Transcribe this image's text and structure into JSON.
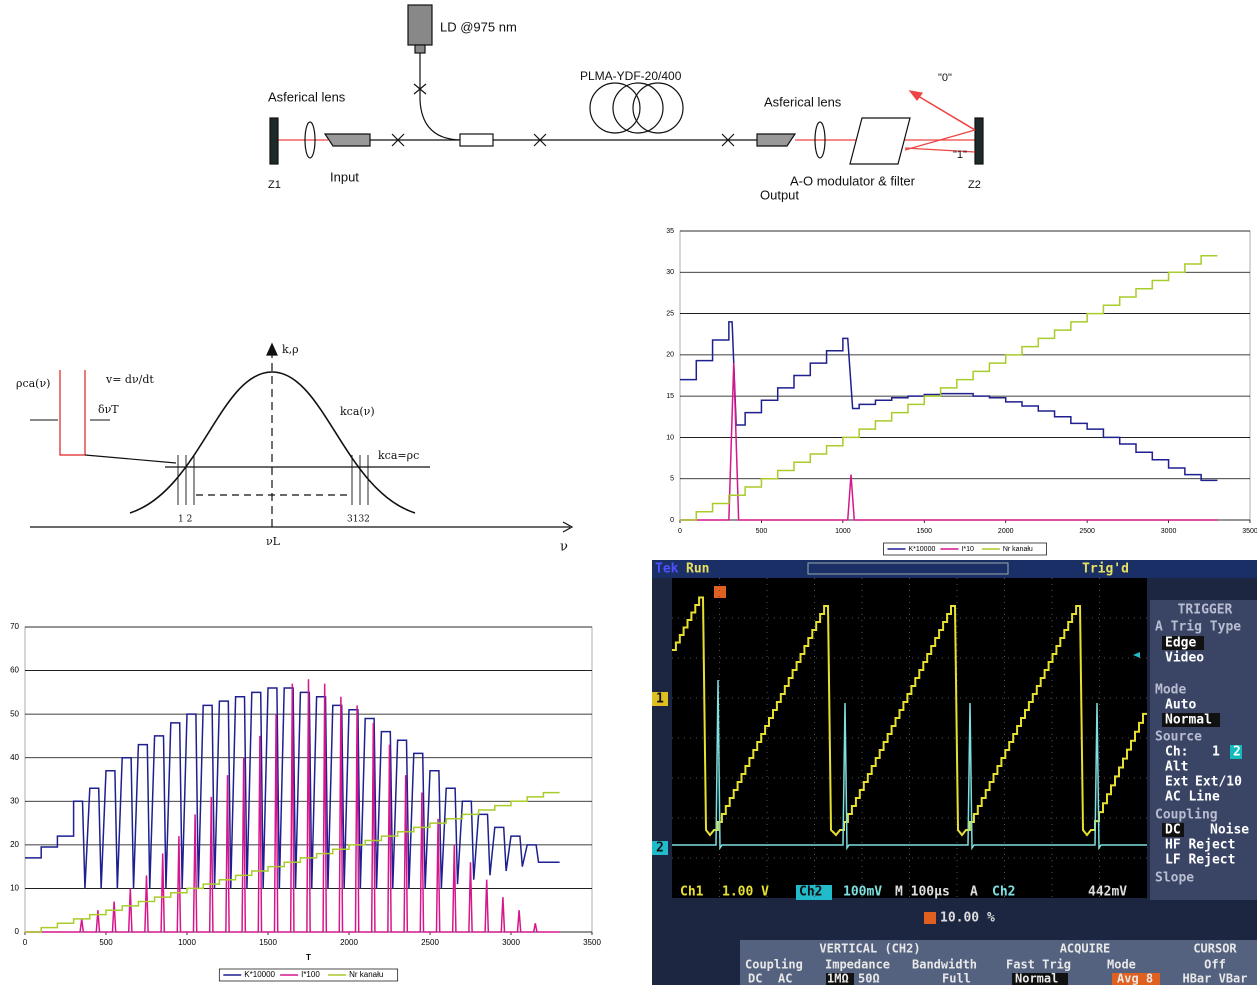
{
  "setup_diagram": {
    "laser_diode": "LD @975 nm",
    "fiber": "PLMA-YDF-20/400",
    "lens_left": "Asferical lens",
    "lens_right": "Asferical lens",
    "input": "Input",
    "output": "Output",
    "modulator": "A-O modulator & filter",
    "mirror_left": "Z1",
    "mirror_right": "Z2",
    "beam_0": "\"0\"",
    "beam_1": "\"1\""
  },
  "spectrum_diagram": {
    "y_axis": "k,ρ",
    "x_axis": "ν",
    "rho": "ρca(ν)",
    "velocity": "v= dν/dt",
    "width": "δνT",
    "gain": "kca(ν)",
    "threshold": "kca=ρc",
    "left_channels": "1 2",
    "right_channels": "3132",
    "center": "νL"
  },
  "chart_data": [
    {
      "type": "line",
      "xlim": [
        0,
        3500
      ],
      "xticks": [
        0,
        500,
        1000,
        1500,
        2000,
        2500,
        3000,
        3500
      ],
      "ylim": [
        0,
        35
      ],
      "yticks": [
        0,
        5,
        10,
        15,
        20,
        25,
        30,
        35
      ],
      "grid": true,
      "legend": "bottom",
      "series": [
        {
          "name": "K*10000",
          "color": "#1f1f8f",
          "x": [
            0,
            100,
            100,
            200,
            200,
            300,
            300,
            320,
            345,
            400,
            400,
            500,
            500,
            600,
            600,
            700,
            700,
            800,
            800,
            900,
            900,
            1000,
            1000,
            1030,
            1060,
            1100,
            1100,
            1200,
            1200,
            1300,
            1300,
            1400,
            1400,
            1500,
            1500,
            1600,
            1600,
            1800,
            1800,
            1900,
            1900,
            2000,
            2000,
            2100,
            2100,
            2200,
            2200,
            2300,
            2300,
            2400,
            2400,
            2500,
            2500,
            2600,
            2600,
            2700,
            2700,
            2800,
            2800,
            2900,
            2900,
            3000,
            3000,
            3100,
            3100,
            3200,
            3200,
            3300
          ],
          "values": [
            17,
            17,
            19.3,
            19.3,
            21.8,
            21.8,
            24,
            24,
            11.5,
            11.5,
            13,
            13,
            14.5,
            14.5,
            16,
            16,
            17.5,
            17.5,
            19,
            19,
            20.5,
            20.5,
            22,
            22,
            13.5,
            13.5,
            14,
            14,
            14.5,
            14.5,
            14.8,
            14.8,
            15,
            15,
            15.2,
            15.2,
            15.3,
            15.3,
            15,
            15,
            14.8,
            14.8,
            14.3,
            14.3,
            13.8,
            13.8,
            13.2,
            13.2,
            12.5,
            12.5,
            11.7,
            11.7,
            11,
            11,
            10,
            10,
            9.2,
            9.2,
            8.2,
            8.2,
            7.3,
            7.3,
            6.3,
            6.3,
            5.5,
            5.5,
            4.8,
            4.8
          ]
        },
        {
          "name": "I*10",
          "color": "#d6168c",
          "x": [
            0,
            300,
            330,
            360,
            1030,
            1050,
            1070,
            3300
          ],
          "values": [
            0,
            0,
            19,
            0,
            0,
            5.5,
            0,
            0
          ]
        },
        {
          "name": "Nr kanału",
          "color": "#a8cc2a",
          "x": [
            0,
            100,
            100,
            200,
            200,
            300,
            300,
            400,
            400,
            500,
            500,
            600,
            600,
            700,
            700,
            800,
            800,
            900,
            900,
            1000,
            1000,
            1100,
            1100,
            1200,
            1200,
            1300,
            1300,
            1400,
            1400,
            1500,
            1500,
            1600,
            1600,
            1700,
            1700,
            1800,
            1800,
            1900,
            1900,
            2000,
            2000,
            2100,
            2100,
            2200,
            2200,
            2300,
            2300,
            2400,
            2400,
            2500,
            2500,
            2600,
            2600,
            2700,
            2700,
            2800,
            2800,
            2900,
            2900,
            3000,
            3000,
            3100,
            3100,
            3200,
            3200,
            3300
          ],
          "values": [
            0,
            0,
            1,
            1,
            2,
            2,
            3,
            3,
            4,
            4,
            5,
            5,
            6,
            6,
            7,
            7,
            8,
            8,
            9,
            9,
            10,
            10,
            11,
            11,
            12,
            12,
            13,
            13,
            14,
            14,
            15,
            15,
            16,
            16,
            17,
            17,
            18,
            18,
            19,
            19,
            20,
            20,
            21,
            21,
            22,
            22,
            23,
            23,
            24,
            24,
            25,
            25,
            26,
            26,
            27,
            27,
            28,
            28,
            29,
            29,
            30,
            30,
            31,
            31,
            32,
            32
          ]
        }
      ]
    },
    {
      "type": "line",
      "x_label": "T",
      "xlim": [
        0,
        3500
      ],
      "xticks": [
        0,
        500,
        1000,
        1500,
        2000,
        2500,
        3000,
        3500
      ],
      "ylim": [
        0,
        70
      ],
      "yticks": [
        0,
        10,
        20,
        30,
        40,
        50,
        60,
        70
      ],
      "grid": true,
      "legend": "bottom",
      "series": [
        {
          "name": "K*10000",
          "color": "#1f1f8f",
          "x": [
            0,
            100,
            100,
            200,
            200,
            300,
            300,
            355,
            370,
            400,
            455,
            470,
            500,
            555,
            570,
            600,
            655,
            670,
            700,
            755,
            770,
            800,
            855,
            870,
            900,
            955,
            970,
            1000,
            1055,
            1070,
            1100,
            1155,
            1170,
            1200,
            1255,
            1270,
            1300,
            1355,
            1370,
            1400,
            1455,
            1470,
            1500,
            1555,
            1570,
            1600,
            1655,
            1670,
            1700,
            1755,
            1770,
            1800,
            1855,
            1870,
            1900,
            1955,
            1970,
            2000,
            2055,
            2070,
            2100,
            2155,
            2170,
            2200,
            2255,
            2270,
            2300,
            2355,
            2370,
            2400,
            2455,
            2470,
            2500,
            2555,
            2570,
            2600,
            2655,
            2670,
            2700,
            2755,
            2770,
            2800,
            2855,
            2870,
            2900,
            2955,
            2970,
            3000,
            3055,
            3070,
            3100,
            3155,
            3170,
            3300
          ],
          "values": [
            17,
            17,
            19.5,
            19.5,
            22,
            22,
            30,
            30,
            10,
            33,
            33,
            10,
            37,
            37,
            10,
            40,
            40,
            10,
            43,
            43,
            10,
            45,
            45,
            10,
            48,
            48,
            10,
            50,
            50,
            10,
            52,
            52,
            10,
            53,
            53,
            10,
            54,
            54,
            10,
            55,
            55,
            10,
            56,
            56,
            10,
            56,
            56,
            10,
            55,
            55,
            10,
            54,
            54,
            10,
            52,
            52,
            10,
            51,
            51,
            10,
            49,
            49,
            10,
            46,
            46,
            10,
            44,
            44,
            10,
            41,
            41,
            10,
            37,
            37,
            10,
            33,
            33,
            11,
            30,
            30,
            12,
            27,
            27,
            13,
            24,
            24,
            14,
            22,
            22,
            15,
            20,
            20,
            16,
            16
          ]
        },
        {
          "name": "I*100",
          "color": "#d6168c",
          "x": [
            0,
            340,
            350,
            360,
            440,
            450,
            460,
            540,
            550,
            560,
            640,
            650,
            660,
            740,
            750,
            760,
            840,
            850,
            860,
            940,
            950,
            960,
            1040,
            1050,
            1060,
            1140,
            1150,
            1160,
            1240,
            1250,
            1260,
            1340,
            1350,
            1360,
            1440,
            1450,
            1460,
            1540,
            1550,
            1560,
            1640,
            1650,
            1660,
            1740,
            1750,
            1760,
            1840,
            1850,
            1860,
            1940,
            1950,
            1960,
            2040,
            2050,
            2060,
            2140,
            2150,
            2160,
            2240,
            2250,
            2260,
            2340,
            2350,
            2360,
            2440,
            2450,
            2460,
            2540,
            2550,
            2560,
            2640,
            2650,
            2660,
            2740,
            2750,
            2760,
            2840,
            2850,
            2860,
            2940,
            2950,
            2960,
            3040,
            3050,
            3060,
            3140,
            3150,
            3160,
            3300
          ],
          "values": [
            0,
            0,
            3,
            0,
            0,
            5,
            0,
            0,
            7,
            0,
            0,
            10,
            0,
            0,
            13,
            0,
            0,
            18,
            0,
            0,
            22,
            0,
            0,
            27,
            0,
            0,
            31,
            0,
            0,
            36,
            0,
            0,
            40,
            0,
            0,
            45,
            0,
            0,
            50,
            0,
            0,
            57,
            0,
            0,
            58,
            0,
            0,
            57,
            0,
            0,
            54,
            0,
            0,
            52,
            0,
            0,
            48,
            0,
            0,
            43,
            0,
            0,
            36,
            0,
            0,
            32,
            0,
            0,
            26,
            0,
            0,
            20,
            0,
            0,
            16,
            0,
            0,
            12,
            0,
            0,
            8,
            0,
            0,
            5,
            0,
            0,
            2,
            0,
            0
          ]
        },
        {
          "name": "Nr kanału",
          "color": "#a8cc2a",
          "x": [
            0,
            100,
            100,
            200,
            200,
            300,
            300,
            400,
            400,
            500,
            500,
            600,
            600,
            700,
            700,
            800,
            800,
            900,
            900,
            1000,
            1000,
            1100,
            1100,
            1200,
            1200,
            1300,
            1300,
            1400,
            1400,
            1500,
            1500,
            1600,
            1600,
            1700,
            1700,
            1800,
            1800,
            1900,
            1900,
            2000,
            2000,
            2100,
            2100,
            2200,
            2200,
            2300,
            2300,
            2400,
            2400,
            2500,
            2500,
            2600,
            2600,
            2700,
            2700,
            2800,
            2800,
            2900,
            2900,
            3000,
            3000,
            3100,
            3100,
            3200,
            3200,
            3300
          ],
          "values": [
            0,
            0,
            1,
            1,
            2,
            2,
            3,
            3,
            4,
            4,
            5,
            5,
            6,
            6,
            7,
            7,
            8,
            8,
            9,
            9,
            10,
            10,
            11,
            11,
            12,
            12,
            13,
            13,
            14,
            14,
            15,
            15,
            16,
            16,
            17,
            17,
            18,
            18,
            19,
            19,
            20,
            20,
            21,
            21,
            22,
            22,
            23,
            23,
            24,
            24,
            25,
            25,
            26,
            26,
            27,
            27,
            28,
            28,
            29,
            29,
            30,
            30,
            31,
            31,
            32,
            32
          ]
        }
      ]
    }
  ],
  "oscilloscope": {
    "brand": "Tek",
    "state": "Run",
    "trigger_status": "Trig'd",
    "ch1_marker": "1",
    "ch2_marker": "2",
    "side_menu": [
      "TRIGGER",
      "A Trig Type",
      "Edge",
      "Video",
      "Mode",
      "Auto",
      "Normal",
      "Source",
      "Ch:",
      "1",
      "2",
      "Alt",
      "Ext",
      "Ext/10",
      "AC Line",
      "Coupling",
      "DC",
      "Noise",
      "HF Reject",
      "LF Reject",
      "Slope"
    ],
    "readout": [
      "Ch1",
      "1.00 V",
      "Ch2",
      "100mV",
      "M 100µs",
      "A",
      "Ch2",
      "442mV",
      "10.00 %"
    ],
    "bottom_menu": [
      "VERTICAL (CH2)",
      "Coupling",
      "Impedance",
      "Bandwidth",
      "DC",
      "AC",
      "1MΩ",
      "50Ω",
      "Full",
      "ACQUIRE",
      "Fast Trig",
      "Mode",
      "Normal",
      "Avg 8",
      "CURSOR",
      "Off",
      "HBar VBar"
    ]
  }
}
